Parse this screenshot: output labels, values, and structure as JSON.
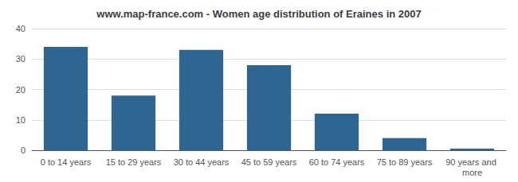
{
  "chart_data": {
    "type": "bar",
    "title": "www.map-france.com - Women age distribution of Eraines in 2007",
    "categories": [
      "0 to 14 years",
      "15 to 29 years",
      "30 to 44 years",
      "45 to 59 years",
      "60 to 74 years",
      "75 to 89 years",
      "90 years and more"
    ],
    "values": [
      34,
      18,
      33,
      28,
      12,
      4,
      0.5
    ],
    "color": "#2e6591",
    "ylim": [
      0,
      40
    ],
    "yticks": [
      0,
      10,
      20,
      30,
      40
    ],
    "grid": true
  }
}
